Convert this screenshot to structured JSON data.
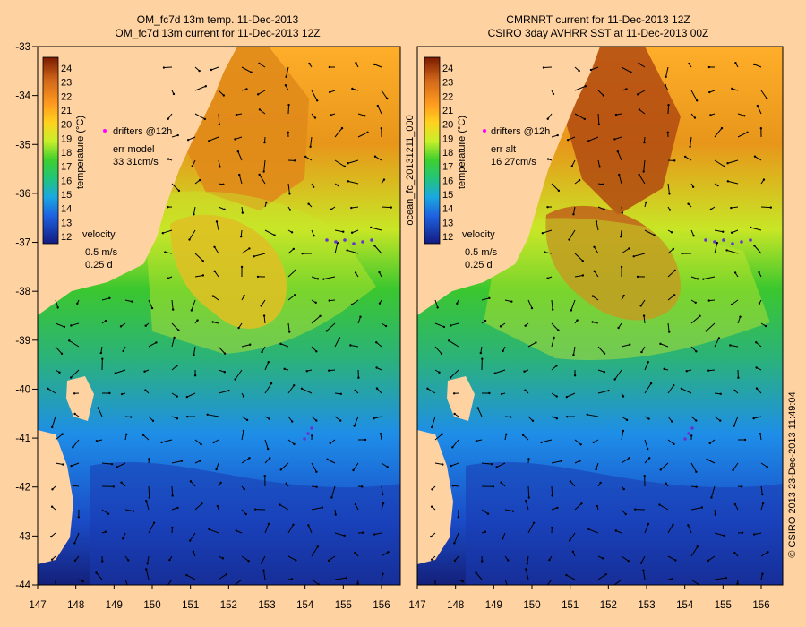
{
  "left": {
    "title1": "OM_fc7d 13m temp. 11-Dec-2013",
    "title2": "OM_fc7d 13m current for 11-Dec-2013 12Z",
    "drifters": "drifters @12h",
    "err_label": "err model",
    "err_value": "33 31cm/s",
    "velocity": "velocity",
    "vel_speed": "0.5 m/s",
    "vel_time": "0.25 d"
  },
  "right": {
    "title1": "CMRNRT current for 11-Dec-2013 12Z",
    "title2": "CSIRO 3day AVHRR SST at 11-Dec-2013 00Z",
    "drifters": "drifters @12h",
    "err_label": "err alt",
    "err_value": "16 27cm/s",
    "velocity": "velocity",
    "vel_speed": "0.5 m/s",
    "vel_time": "0.25 d"
  },
  "colorbar": {
    "label": "temperature (°C)",
    "ticks": [
      "24",
      "23",
      "22",
      "21",
      "20",
      "19",
      "18",
      "17",
      "16",
      "15",
      "14",
      "13",
      "12"
    ]
  },
  "xticks": [
    "147",
    "148",
    "149",
    "150",
    "151",
    "152",
    "153",
    "154",
    "155",
    "156"
  ],
  "yticks": [
    "-33",
    "-34",
    "-35",
    "-36",
    "-37",
    "-38",
    "-39",
    "-40",
    "-41",
    "-42",
    "-43",
    "-44"
  ],
  "side_label": "ocean_fc_20131211_000",
  "copyright": "© CSIRO 2013   23-Dec-2013 11:49:04",
  "colors": {
    "background": "#ffd2a2",
    "land": "#ffd2a2",
    "drifter": "#ff00ff",
    "drifter_track": "#6633cc"
  }
}
